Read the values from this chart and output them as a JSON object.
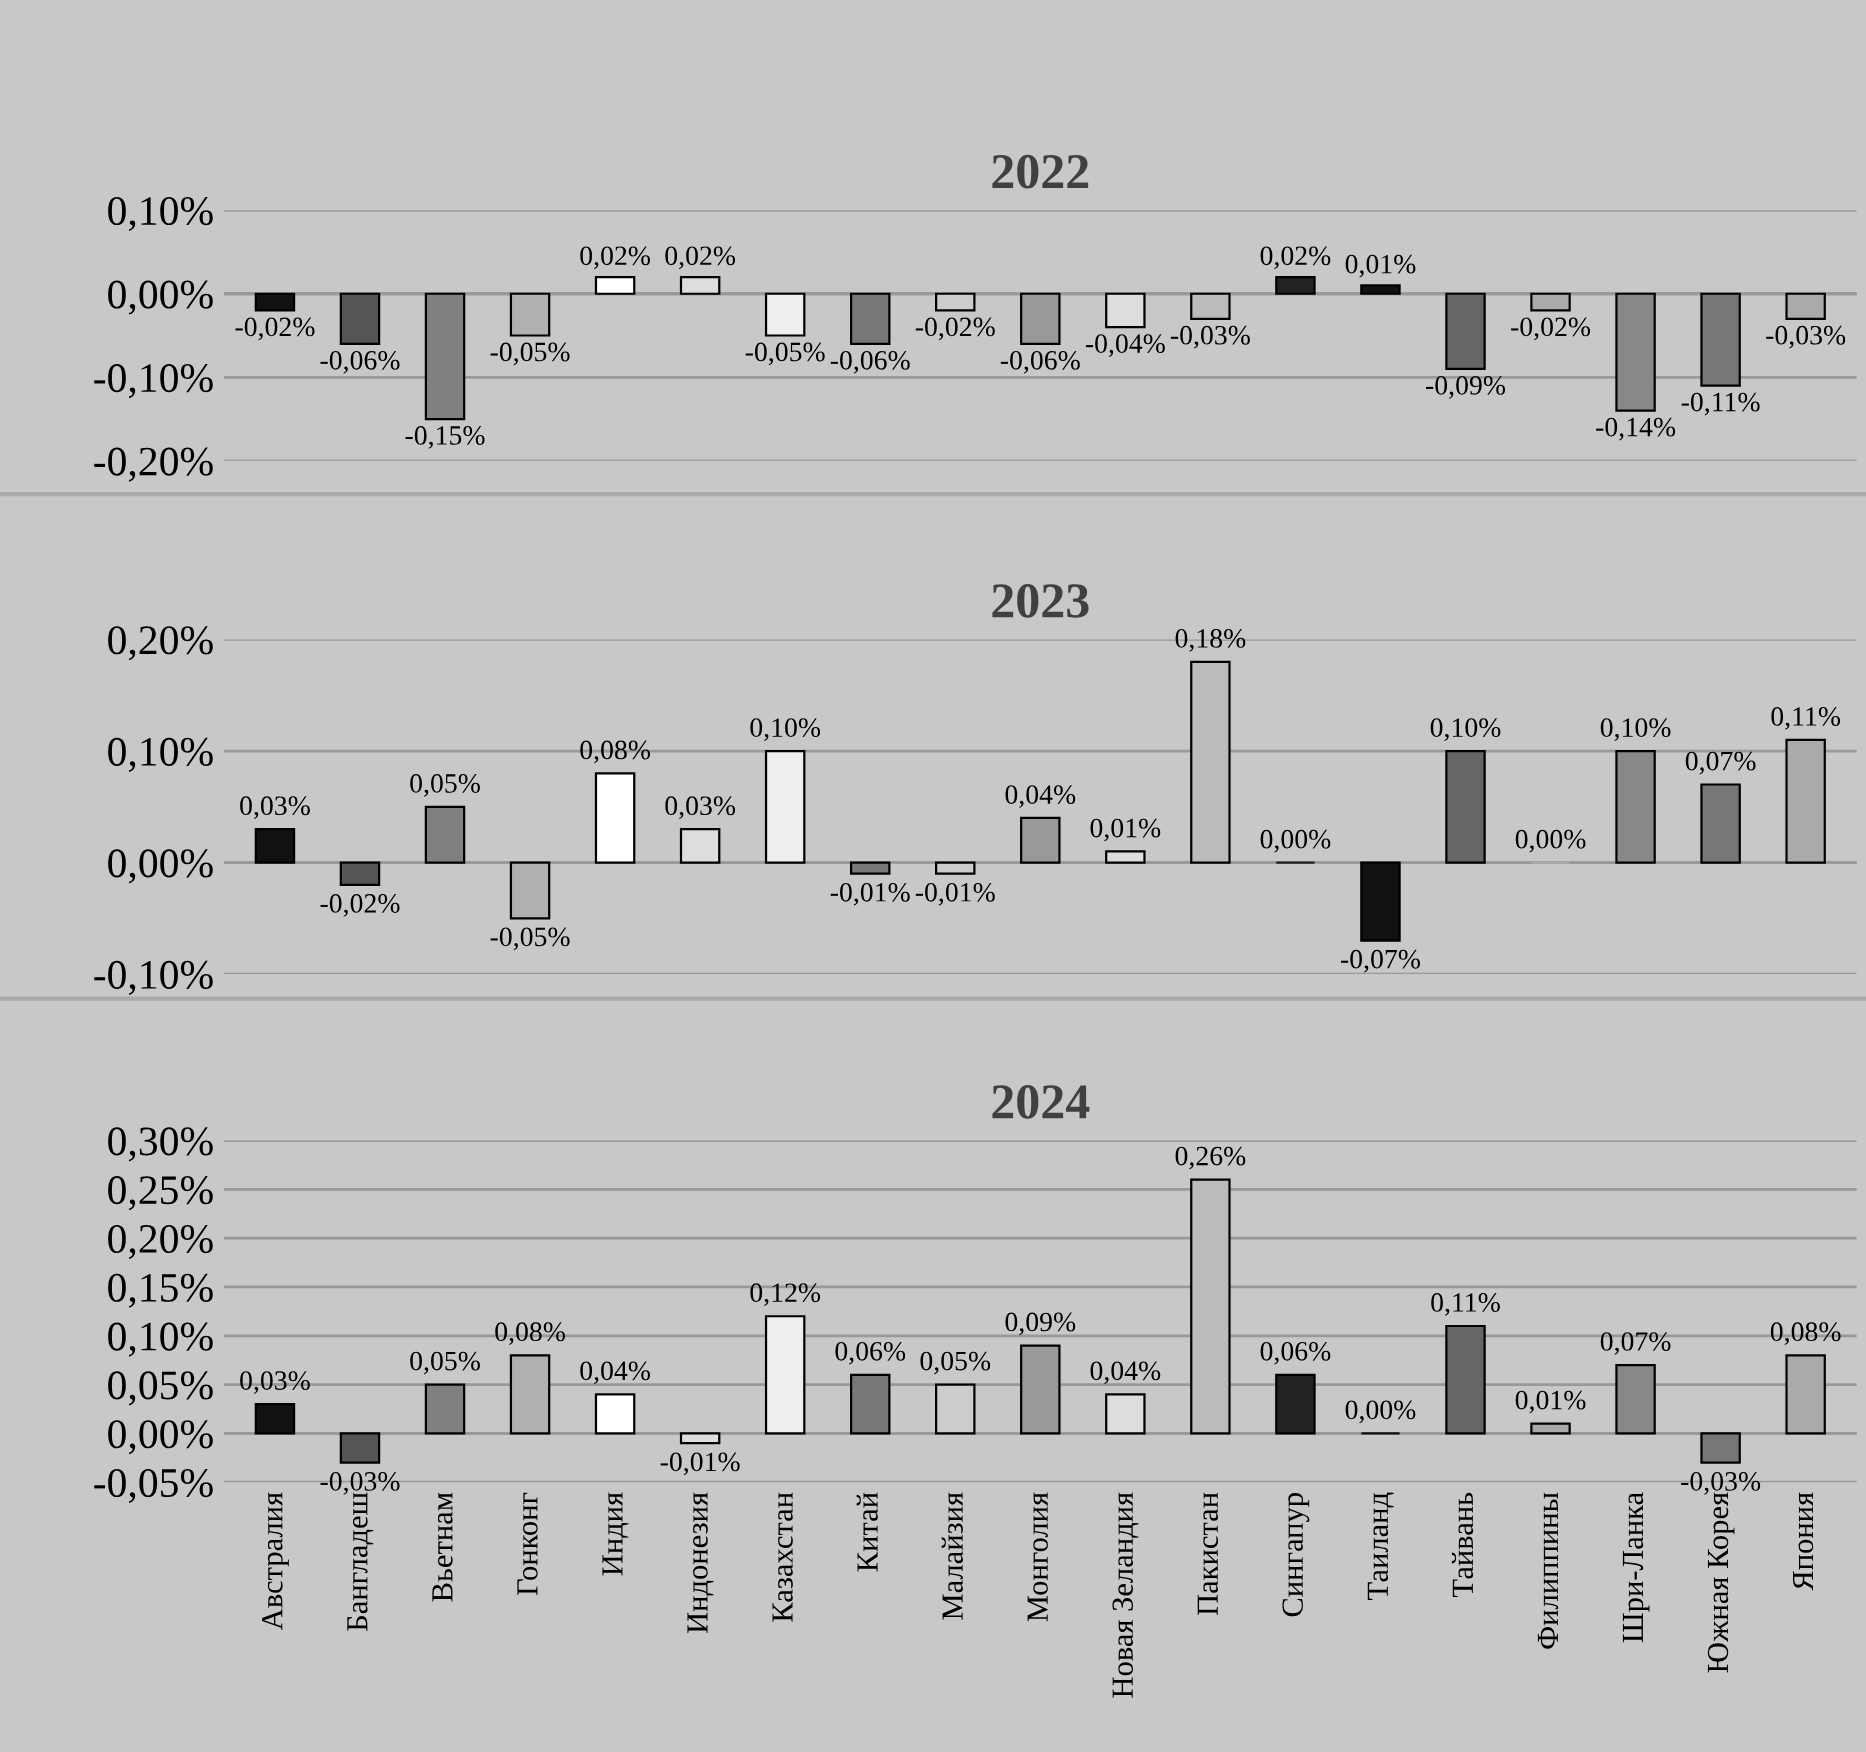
{
  "chart_data": [
    {
      "type": "bar",
      "title": "2022",
      "categories": [
        null,
        null,
        null,
        null,
        null,
        null,
        null,
        null,
        null,
        null,
        null,
        null,
        null,
        null,
        null,
        null,
        null,
        null,
        null
      ],
      "values": [
        -0.02,
        -0.06,
        -0.15,
        -0.05,
        0.02,
        0.02,
        -0.05,
        -0.06,
        -0.02,
        -0.06,
        -0.04,
        -0.03,
        0.02,
        0.01,
        -0.09,
        -0.02,
        -0.14,
        -0.11,
        -0.03
      ],
      "value_labels": [
        "-0,02%",
        "-0,06%",
        "-0,15%",
        "-0,05%",
        "0,02%",
        "0,02%",
        "-0,05%",
        "-0,06%",
        "-0,02%",
        "-0,06%",
        "-0,04%",
        "-0,03%",
        "0,02%",
        "0,01%",
        "-0,09%",
        "-0,02%",
        "-0,14%",
        "-0,11%",
        "-0,03%"
      ],
      "colors": [
        "#111111",
        "#555555",
        "#808080",
        "#b0b0b0",
        "#ffffff",
        "#dddddd",
        "#eeeeee",
        "#777777",
        "#cccccc",
        "#999999",
        "#dddddd",
        "#bbbbbb",
        "#222222",
        "#111111",
        "#666666",
        "#aaaaaa",
        "#888888",
        "#777777",
        "#aaaaaa"
      ],
      "ylim": [
        -0.2,
        0.1
      ],
      "yticks": [
        {
          "value": -0.2,
          "label": "-0,20%"
        },
        {
          "value": -0.1,
          "label": "-0,10%"
        },
        {
          "value": 0,
          "label": "0,00%"
        },
        {
          "value": 0.1,
          "label": "0,10%"
        }
      ],
      "grid": "y"
    },
    {
      "type": "bar",
      "title": "2023",
      "categories": [
        null,
        null,
        null,
        null,
        null,
        null,
        null,
        null,
        null,
        null,
        null,
        null,
        null,
        null,
        null,
        null,
        null,
        null,
        null
      ],
      "values": [
        0.03,
        -0.02,
        0.05,
        -0.05,
        0.08,
        0.03,
        0.1,
        -0.01,
        -0.01,
        0.04,
        0.01,
        0.18,
        0.0,
        -0.07,
        0.1,
        0.0,
        0.1,
        0.07,
        0.11
      ],
      "value_labels": [
        "0,03%",
        "-0,02%",
        "0,05%",
        "-0,05%",
        "0,08%",
        "0,03%",
        "0,10%",
        "-0,01%",
        "-0,01%",
        "0,04%",
        "0,01%",
        "0,18%",
        "0,00%",
        "-0,07%",
        "0,10%",
        "0,00%",
        "0,10%",
        "0,07%",
        "0,11%"
      ],
      "colors": [
        "#111111",
        "#555555",
        "#808080",
        "#b0b0b0",
        "#ffffff",
        "#dddddd",
        "#eeeeee",
        "#777777",
        "#cccccc",
        "#999999",
        "#dddddd",
        "#bbbbbb",
        "#222222",
        "#111111",
        "#666666",
        "#aaaaaa",
        "#888888",
        "#777777",
        "#aaaaaa"
      ],
      "ylim": [
        -0.1,
        0.2
      ],
      "yticks": [
        {
          "value": -0.1,
          "label": "-0,10%"
        },
        {
          "value": 0,
          "label": "0,00%"
        },
        {
          "value": 0.1,
          "label": "0,10%"
        },
        {
          "value": 0.2,
          "label": "0,20%"
        }
      ],
      "grid": "y"
    },
    {
      "type": "bar",
      "title": "2024",
      "categories": [
        "Австралия",
        "Бангладеш",
        "Вьетнам",
        "Гонконг",
        "Индия",
        "Индонезия",
        "Казахстан",
        "Китай",
        "Малайзия",
        "Монголия",
        "Новая Зеландия",
        "Пакистан",
        "Сингапур",
        "Таиланд",
        "Тайвань",
        "Филиппины",
        "Шри-Ланка",
        "Южная Корея",
        "Япония"
      ],
      "values": [
        0.03,
        -0.03,
        0.05,
        0.08,
        0.04,
        -0.01,
        0.12,
        0.06,
        0.05,
        0.09,
        0.04,
        0.26,
        0.06,
        0.0,
        0.11,
        0.01,
        0.07,
        -0.03,
        0.08
      ],
      "value_labels": [
        "0,03%",
        "-0,03%",
        "0,05%",
        "0,08%",
        "0,04%",
        "-0,01%",
        "0,12%",
        "0,06%",
        "0,05%",
        "0,09%",
        "0,04%",
        "0,26%",
        "0,06%",
        "0,00%",
        "0,11%",
        "0,01%",
        "0,07%",
        "-0,03%",
        "0,08%"
      ],
      "colors": [
        "#111111",
        "#555555",
        "#808080",
        "#b0b0b0",
        "#ffffff",
        "#dddddd",
        "#eeeeee",
        "#777777",
        "#cccccc",
        "#999999",
        "#dddddd",
        "#bbbbbb",
        "#222222",
        "#111111",
        "#666666",
        "#aaaaaa",
        "#888888",
        "#777777",
        "#aaaaaa"
      ],
      "ylim": [
        -0.05,
        0.3
      ],
      "yticks": [
        {
          "value": -0.05,
          "label": "-0,05%"
        },
        {
          "value": 0,
          "label": "0,00%"
        },
        {
          "value": 0.05,
          "label": "0,05%"
        },
        {
          "value": 0.1,
          "label": "0,10%"
        },
        {
          "value": 0.15,
          "label": "0,15%"
        },
        {
          "value": 0.2,
          "label": "0,20%"
        },
        {
          "value": 0.25,
          "label": "0,25%"
        },
        {
          "value": 0.3,
          "label": "0,30%"
        }
      ],
      "grid": "y"
    }
  ]
}
